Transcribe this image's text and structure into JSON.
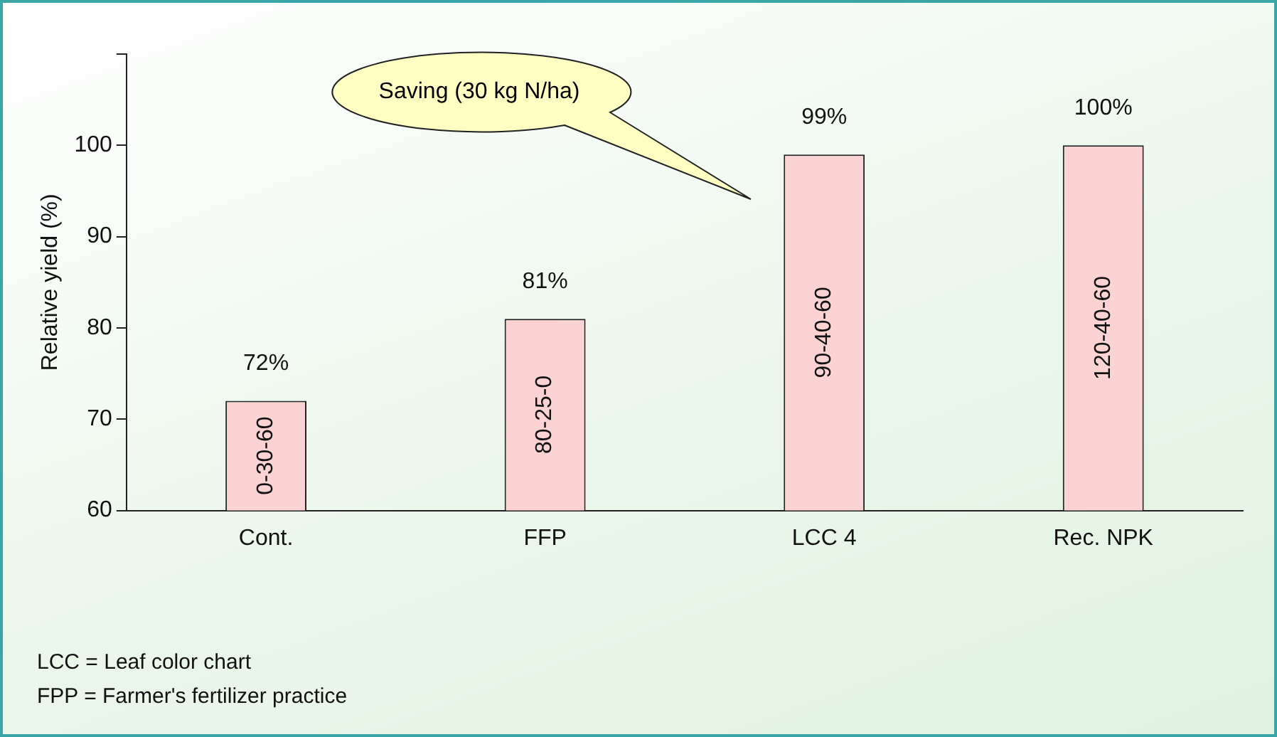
{
  "chart_data": {
    "type": "bar",
    "ylabel": "Relative yield (%)",
    "categories": [
      "Cont.",
      "FFP",
      "LCC 4",
      "Rec. NPK"
    ],
    "values": [
      72,
      81,
      99,
      100
    ],
    "value_labels": [
      "72%",
      "81%",
      "99%",
      "100%"
    ],
    "color": "#fbd3d3",
    "ylim": [
      60,
      110
    ],
    "yticks": [
      60,
      70,
      80,
      90,
      100,
      {
        "value": 110,
        "label": null
      }
    ],
    "grid": false,
    "legend": false,
    "annotations": [
      "0-30-60",
      "80-25-0",
      "90-40-60",
      "120-40-60",
      "Saving (30 kg N/ha)",
      "LCC = Leaf color chart",
      "FPP = Farmer's fertilizer practice"
    ]
  }
}
